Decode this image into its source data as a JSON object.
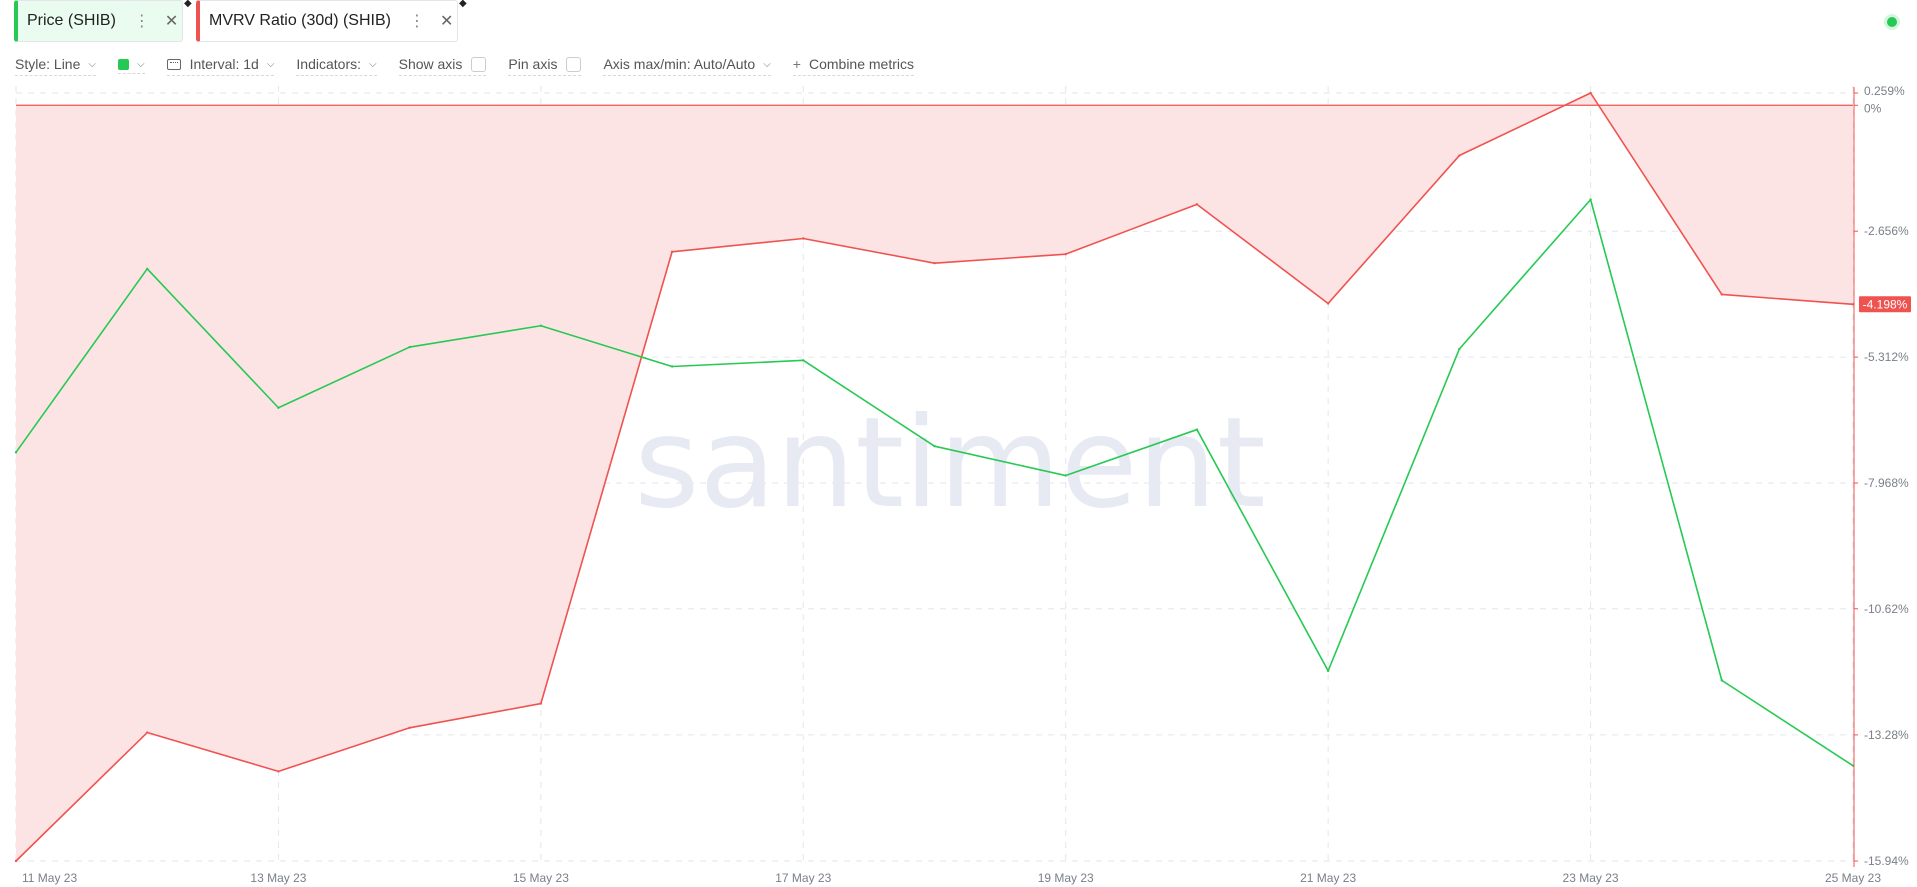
{
  "metrics": [
    {
      "label": "Price (SHIB)",
      "color": "#26c953"
    },
    {
      "label": "MVRV Ratio (30d) (SHIB)",
      "color": "#ef5350"
    }
  ],
  "toolbar": {
    "style_label": "Style: Line",
    "interval_label": "Interval: 1d",
    "indicators_label": "Indicators:",
    "show_axis_label": "Show axis",
    "pin_axis_label": "Pin axis",
    "axis_minmax_label": "Axis max/min: Auto/Auto",
    "combine_label": "Combine metrics"
  },
  "watermark": "santiment",
  "chart_data": {
    "type": "line",
    "x": [
      "11 May 23",
      "12 May 23",
      "13 May 23",
      "14 May 23",
      "15 May 23",
      "16 May 23",
      "17 May 23",
      "18 May 23",
      "19 May 23",
      "20 May 23",
      "21 May 23",
      "22 May 23",
      "23 May 23",
      "24 May 23",
      "25 May 23"
    ],
    "x_tick_labels": [
      "11 May 23",
      "13 May 23",
      "15 May 23",
      "17 May 23",
      "19 May 23",
      "21 May 23",
      "23 May 23",
      "25 May 23"
    ],
    "y_tick_labels": [
      "0.259%",
      "0%",
      "-2.656%",
      "-5.312%",
      "-7.968%",
      "-10.62%",
      "-13.28%",
      "-15.94%"
    ],
    "y_ticks": [
      0.259,
      0,
      -2.656,
      -5.312,
      -7.968,
      -10.62,
      -13.28,
      -15.94
    ],
    "ylim": [
      -15.94,
      0.259
    ],
    "current_value_label": "-4.198%",
    "current_value": -4.198,
    "grid": true,
    "series": [
      {
        "name": "MVRV Ratio (30d) (SHIB)",
        "color": "#ef5350",
        "fill": "#fde4e4",
        "values": [
          -15.94,
          -13.23,
          -14.05,
          -13.13,
          -12.62,
          -3.09,
          -2.81,
          -3.33,
          -3.14,
          -2.09,
          -4.18,
          -1.06,
          0.259,
          -3.99,
          -4.198
        ]
      },
      {
        "name": "Price (SHIB)",
        "color": "#26c953",
        "values": [
          -7.32,
          -3.45,
          -6.38,
          -5.1,
          -4.65,
          -5.51,
          -5.38,
          -7.19,
          -7.81,
          -6.84,
          -11.93,
          -5.14,
          -1.99,
          -12.13,
          -13.93
        ]
      }
    ]
  }
}
